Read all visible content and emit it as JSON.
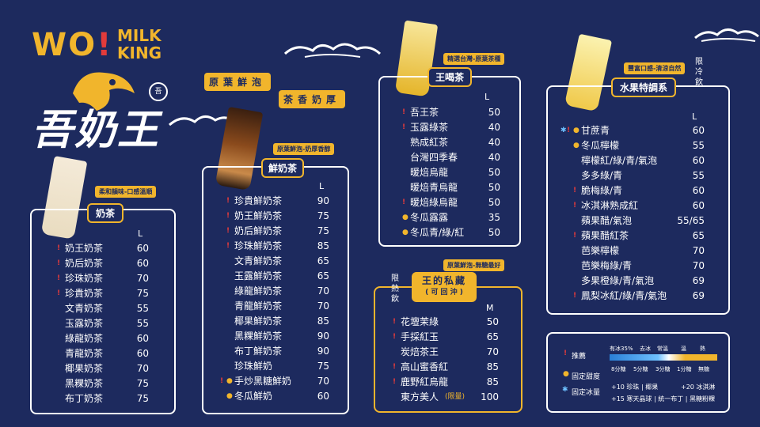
{
  "brand": {
    "logo_top": "WO! MILK KING",
    "logo_main": "吾奶王"
  },
  "slogans": [
    "原葉鮮泡",
    "茶香奶厚"
  ],
  "milk_tea": {
    "title": "奶茶",
    "tag": "柔和韻味-口感溫順",
    "size": "L",
    "items": [
      {
        "name": "奶王奶茶",
        "price": "60",
        "mark": "red"
      },
      {
        "name": "奶后奶茶",
        "price": "60",
        "mark": "red"
      },
      {
        "name": "珍珠奶茶",
        "price": "70",
        "mark": "red"
      },
      {
        "name": "珍貴奶茶",
        "price": "75",
        "mark": "red"
      },
      {
        "name": "文青奶茶",
        "price": "55",
        "mark": ""
      },
      {
        "name": "玉露奶茶",
        "price": "55",
        "mark": ""
      },
      {
        "name": "綠龍奶茶",
        "price": "60",
        "mark": ""
      },
      {
        "name": "青龍奶茶",
        "price": "60",
        "mark": ""
      },
      {
        "name": "椰果奶茶",
        "price": "70",
        "mark": ""
      },
      {
        "name": "黑粿奶茶",
        "price": "75",
        "mark": ""
      },
      {
        "name": "布丁奶茶",
        "price": "75",
        "mark": ""
      }
    ]
  },
  "fresh_milk_tea": {
    "title": "鮮奶茶",
    "tag": "原葉鮮泡-奶厚香醇",
    "size": "L",
    "items": [
      {
        "name": "珍貴鮮奶茶",
        "price": "90",
        "mark": "red"
      },
      {
        "name": "奶王鮮奶茶",
        "price": "75",
        "mark": "red"
      },
      {
        "name": "奶后鮮奶茶",
        "price": "75",
        "mark": "red"
      },
      {
        "name": "珍珠鮮奶茶",
        "price": "85",
        "mark": "red"
      },
      {
        "name": "文青鮮奶茶",
        "price": "65",
        "mark": ""
      },
      {
        "name": "玉露鮮奶茶",
        "price": "65",
        "mark": ""
      },
      {
        "name": "綠龍鮮奶茶",
        "price": "70",
        "mark": ""
      },
      {
        "name": "青龍鮮奶茶",
        "price": "70",
        "mark": ""
      },
      {
        "name": "椰果鮮奶茶",
        "price": "85",
        "mark": ""
      },
      {
        "name": "黑粿鮮奶茶",
        "price": "90",
        "mark": ""
      },
      {
        "name": "布丁鮮奶茶",
        "price": "90",
        "mark": ""
      },
      {
        "name": "珍珠鮮奶",
        "price": "75",
        "mark": ""
      },
      {
        "name": "手炒黑糖鮮奶",
        "price": "70",
        "mark": "red-yel"
      },
      {
        "name": "冬瓜鮮奶",
        "price": "60",
        "mark": "yel"
      }
    ]
  },
  "king_tea": {
    "title": "王喝茶",
    "tag": "精選台灣-原葉茶種",
    "size": "L",
    "items": [
      {
        "name": "吾王茶",
        "price": "50",
        "mark": "red"
      },
      {
        "name": "玉露綠茶",
        "price": "40",
        "mark": "red"
      },
      {
        "name": "熟成紅茶",
        "price": "40",
        "mark": ""
      },
      {
        "name": "台灣四季春",
        "price": "40",
        "mark": ""
      },
      {
        "name": "暖焙烏龍",
        "price": "50",
        "mark": ""
      },
      {
        "name": "暖焙青烏龍",
        "price": "50",
        "mark": ""
      },
      {
        "name": "暖焙綠烏龍",
        "price": "50",
        "mark": "red"
      },
      {
        "name": "冬瓜露露",
        "price": "35",
        "mark": "yel"
      },
      {
        "name": "冬瓜青/綠/紅",
        "price": "50",
        "mark": "yel"
      }
    ]
  },
  "private": {
    "title": "王的私藏",
    "subtitle": "( 可 回 沖 )",
    "tag": "原葉鮮泡-無糖最好",
    "side_note": "限熱飲",
    "size": "M",
    "items": [
      {
        "name": "花壇茉綠",
        "price": "50",
        "mark": "red"
      },
      {
        "name": "手採紅玉",
        "price": "65",
        "mark": "red"
      },
      {
        "name": "炭焙茶王",
        "price": "70",
        "mark": ""
      },
      {
        "name": "高山蜜香紅",
        "price": "85",
        "mark": "red"
      },
      {
        "name": "鹿野紅烏龍",
        "price": "85",
        "mark": "red"
      },
      {
        "name": "東方美人",
        "price": "100",
        "mark": "",
        "extra": "(限量)"
      }
    ]
  },
  "fruit": {
    "title": "水果特調系",
    "tag": "豐富口感-清涼自然",
    "side_note": "限冷飲",
    "size": "L",
    "items": [
      {
        "name": "甘蔗青",
        "price": "60",
        "mark": "blu-red-yel"
      },
      {
        "name": "冬瓜檸檬",
        "price": "55",
        "mark": "yel"
      },
      {
        "name": "檸檬紅/綠/青/氣泡",
        "price": "60",
        "mark": ""
      },
      {
        "name": "多多綠/青",
        "price": "55",
        "mark": ""
      },
      {
        "name": "脆梅綠/青",
        "price": "60",
        "mark": "red"
      },
      {
        "name": "冰淇淋熟成紅",
        "price": "60",
        "mark": "red"
      },
      {
        "name": "蘋果醋/氣泡",
        "price": "55/65",
        "mark": ""
      },
      {
        "name": "蘋果醋紅茶",
        "price": "65",
        "mark": "red"
      },
      {
        "name": "芭樂檸檬",
        "price": "70",
        "mark": ""
      },
      {
        "name": "芭樂梅綠/青",
        "price": "70",
        "mark": ""
      },
      {
        "name": "多果橙綠/青/氣泡",
        "price": "69",
        "mark": ""
      },
      {
        "name": "鳳梨冰紅/綠/青/氣泡",
        "price": "69",
        "mark": "red"
      }
    ]
  },
  "legend": {
    "recommend": "推薦",
    "fixed_sweet": "固定甜度",
    "fixed_ice": "固定冰量",
    "ice_levels": [
      "常溫",
      "溫",
      "熱"
    ],
    "ice_prefix": "有冰35%",
    "ice_remove": "去冰",
    "sweet_levels": [
      "8分糖",
      "5分糖",
      "3分糖",
      "1分糖",
      "無糖"
    ],
    "toppings_1": "+10 珍珠 | 椰果",
    "toppings_2": "+20 冰淇淋",
    "toppings_3": "+15 寒天晶球 | 統一布丁 | 黑糖粉粿"
  },
  "colors": {
    "background": "#1d2a5e",
    "gold": "#f1b52c",
    "red_mark": "#e23b3b",
    "blue_mark": "#6ec1ff"
  }
}
